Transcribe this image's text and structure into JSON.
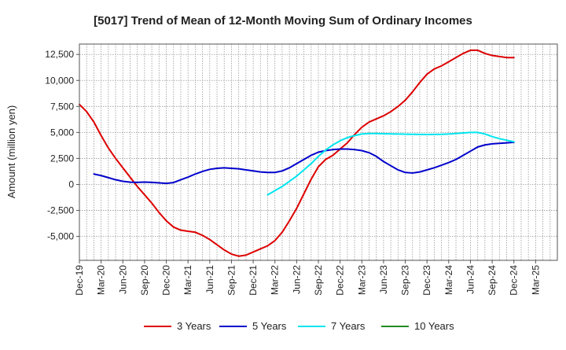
{
  "chart_data": {
    "type": "line",
    "title": "[5017]  Trend of Mean of 12-Month Moving Sum of Ordinary Incomes",
    "xlabel": "",
    "ylabel": "Amount (million yen)",
    "ylim": [
      -7300,
      13500
    ],
    "xlim": [
      0,
      66
    ],
    "grid": true,
    "legend_position": "bottom",
    "x_tick_labels": [
      "Dec-19",
      "Mar-20",
      "Jun-20",
      "Sep-20",
      "Dec-20",
      "Mar-21",
      "Jun-21",
      "Sep-21",
      "Dec-21",
      "Mar-22",
      "Jun-22",
      "Sep-22",
      "Dec-22",
      "Mar-23",
      "Jun-23",
      "Sep-23",
      "Dec-23",
      "Mar-24",
      "Jun-24",
      "Sep-24",
      "Dec-24",
      "Mar-25"
    ],
    "x_tick_positions": [
      0,
      3,
      6,
      9,
      12,
      15,
      18,
      21,
      24,
      27,
      30,
      33,
      36,
      39,
      42,
      45,
      48,
      51,
      54,
      57,
      60,
      63
    ],
    "y_ticks": [
      -5000,
      -2500,
      0,
      2500,
      5000,
      7500,
      10000,
      12500
    ],
    "y_tick_labels": [
      "-5,000",
      "-2,500",
      "0",
      "2,500",
      "5,000",
      "7,500",
      "10,000",
      "12,500"
    ],
    "series": [
      {
        "name": "3 Years",
        "color": "#dd0000",
        "x": [
          0,
          1,
          2,
          3,
          4,
          5,
          6,
          7,
          8,
          9,
          10,
          11,
          12,
          13,
          14,
          15,
          16,
          17,
          18,
          19,
          20,
          21,
          22,
          23,
          24,
          25,
          26,
          27,
          28,
          29,
          30,
          31,
          32,
          33,
          34,
          35,
          36,
          37,
          38,
          39,
          40,
          41,
          42,
          43,
          44,
          45,
          46,
          47,
          48,
          49,
          50,
          51,
          52,
          53,
          54,
          55,
          56,
          57,
          58,
          59,
          60
        ],
        "values": [
          7700,
          7000,
          6000,
          4700,
          3500,
          2500,
          1600,
          700,
          -200,
          -1000,
          -1800,
          -2700,
          -3500,
          -4100,
          -4400,
          -4500,
          -4600,
          -4900,
          -5300,
          -5800,
          -6300,
          -6700,
          -6900,
          -6800,
          -6500,
          -6200,
          -5900,
          -5400,
          -4600,
          -3500,
          -2300,
          -900,
          500,
          1700,
          2400,
          2800,
          3400,
          4000,
          4800,
          5500,
          6000,
          6300,
          6600,
          7000,
          7500,
          8100,
          8900,
          9800,
          10600,
          11100,
          11400,
          11800,
          12200,
          12600,
          12900,
          12900,
          12600,
          12400,
          12300,
          12200,
          12200
        ]
      },
      {
        "name": "5 Years",
        "color": "#0000cc",
        "x": [
          2,
          3,
          4,
          5,
          6,
          7,
          8,
          9,
          10,
          11,
          12,
          13,
          14,
          15,
          16,
          17,
          18,
          19,
          20,
          21,
          22,
          23,
          24,
          25,
          26,
          27,
          28,
          29,
          30,
          31,
          32,
          33,
          34,
          35,
          36,
          37,
          38,
          39,
          40,
          41,
          42,
          43,
          44,
          45,
          46,
          47,
          48,
          49,
          50,
          51,
          52,
          53,
          54,
          55,
          56,
          57,
          58,
          59,
          60
        ],
        "values": [
          1000,
          850,
          650,
          450,
          300,
          220,
          200,
          230,
          200,
          150,
          100,
          180,
          450,
          700,
          1000,
          1250,
          1450,
          1550,
          1600,
          1550,
          1500,
          1400,
          1300,
          1200,
          1150,
          1150,
          1300,
          1600,
          2000,
          2400,
          2800,
          3100,
          3250,
          3350,
          3400,
          3400,
          3350,
          3250,
          3050,
          2700,
          2200,
          1800,
          1400,
          1150,
          1100,
          1200,
          1400,
          1600,
          1850,
          2100,
          2400,
          2800,
          3200,
          3600,
          3800,
          3900,
          3950,
          4000,
          4050
        ]
      },
      {
        "name": "7 Years",
        "color": "#00e5ee",
        "x": [
          26,
          27,
          28,
          29,
          30,
          31,
          32,
          33,
          34,
          35,
          36,
          37,
          38,
          39,
          40,
          41,
          42,
          43,
          44,
          45,
          46,
          47,
          48,
          49,
          50,
          51,
          52,
          53,
          54,
          55,
          56,
          57,
          58,
          59,
          60
        ],
        "values": [
          -1000,
          -600,
          -200,
          300,
          800,
          1400,
          2000,
          2700,
          3300,
          3800,
          4200,
          4500,
          4700,
          4850,
          4900,
          4900,
          4880,
          4860,
          4850,
          4830,
          4820,
          4810,
          4800,
          4810,
          4820,
          4850,
          4900,
          4950,
          5000,
          5000,
          4850,
          4600,
          4400,
          4250,
          4100
        ]
      },
      {
        "name": "10 Years",
        "color": "#228b22",
        "x": [],
        "values": []
      }
    ]
  }
}
